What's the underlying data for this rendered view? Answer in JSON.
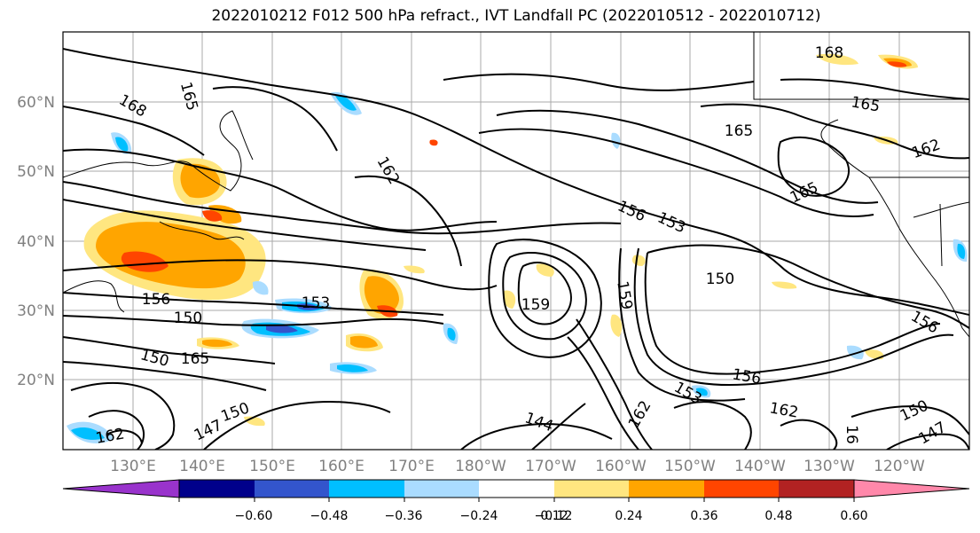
{
  "title": "2022010212 F012 500 hPa refract., IVT Landfall PC (2022010512 - 2022010712)",
  "map": {
    "lat_ticks": [
      "60°N",
      "50°N",
      "40°N",
      "30°N",
      "20°N"
    ],
    "lon_ticks": [
      "130°E",
      "140°E",
      "150°E",
      "160°E",
      "170°E",
      "180°W",
      "170°W",
      "160°W",
      "150°W",
      "140°W",
      "130°W",
      "120°W"
    ],
    "contour_labels": [
      "168",
      "165",
      "165",
      "162",
      "153",
      "156",
      "156",
      "150",
      "150",
      "150",
      "147",
      "153",
      "159",
      "159",
      "150",
      "156",
      "144",
      "162",
      "168",
      "165",
      "165",
      "162",
      "165",
      "153",
      "162",
      "156",
      "150",
      "147",
      "16",
      "162"
    ]
  },
  "colorbar": {
    "ticks": [
      "−0.60",
      "−0.48",
      "−0.36",
      "−0.24",
      "−0.12",
      "0.12",
      "0.24",
      "0.36",
      "0.48",
      "0.60"
    ],
    "colors": [
      "#9933cc",
      "#00008b",
      "#3355cc",
      "#00bfff",
      "#aadcff",
      "#ffffff",
      "#ffe680",
      "#ffa500",
      "#ff4500",
      "#b22222",
      "#ff88aa"
    ]
  }
}
